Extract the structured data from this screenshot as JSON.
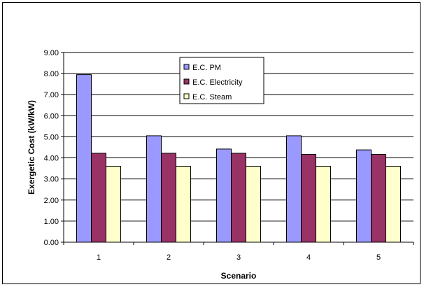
{
  "chart_data": {
    "type": "bar",
    "title": "",
    "xlabel": "Scenario",
    "ylabel": "Exergetic Cost (kW/kW)",
    "categories": [
      "1",
      "2",
      "3",
      "4",
      "5"
    ],
    "series": [
      {
        "name": "E.C. PM",
        "color": "#9999ff",
        "values": [
          7.95,
          5.05,
          4.42,
          5.05,
          4.38
        ]
      },
      {
        "name": "E.C. Electricity",
        "color": "#993366",
        "values": [
          4.22,
          4.22,
          4.22,
          4.17,
          4.17
        ]
      },
      {
        "name": "E.C. Steam",
        "color": "#ffffcc",
        "values": [
          3.6,
          3.6,
          3.6,
          3.6,
          3.6
        ]
      }
    ],
    "ylim": [
      0,
      9
    ],
    "ytick_labels": [
      "0.00",
      "1.00",
      "2.00",
      "3.00",
      "4.00",
      "5.00",
      "6.00",
      "7.00",
      "8.00",
      "9.00"
    ],
    "grid": true,
    "legend_position": "top-center"
  }
}
